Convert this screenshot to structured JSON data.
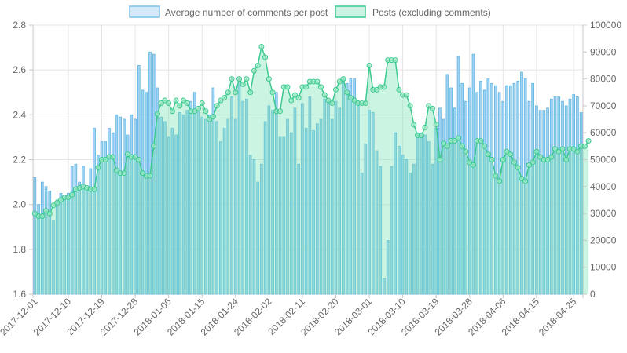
{
  "chart_data": {
    "type": "bar",
    "legend": {
      "placement": "top",
      "items": [
        {
          "label": "Average number of comments per post",
          "fill": "#d6e9f9",
          "stroke": "#7cc1ea"
        },
        {
          "label": "Posts (excluding comments)",
          "fill": "#c9f2e3",
          "stroke": "#3cc98f"
        }
      ]
    },
    "x_start_date": "2017-12-01",
    "x_tick_labels": [
      "2017-12-01",
      "2017-12-10",
      "2017-12-19",
      "2017-12-28",
      "2018-01-06",
      "2018-01-15",
      "2018-01-24",
      "2018-02-02",
      "2018-02-11",
      "2018-02-20",
      "2018-03-01",
      "2018-03-10",
      "2018-03-19",
      "2018-03-28",
      "2018-04-06",
      "2018-04-15",
      "2018-04-25"
    ],
    "y_left": {
      "min": 1.6,
      "max": 2.8,
      "ticks": [
        "1.6",
        "1.8",
        "2.0",
        "2.2",
        "2.4",
        "2.6",
        "2.8"
      ]
    },
    "y_right": {
      "min": 0,
      "max": 100000,
      "ticks": [
        "0",
        "10000",
        "20000",
        "30000",
        "40000",
        "50000",
        "60000",
        "70000",
        "80000",
        "90000",
        "100000"
      ]
    },
    "grid": true,
    "series": [
      {
        "name": "Average number of comments per post",
        "type": "bar",
        "axis": "left",
        "color": "#5fb4e3",
        "values": [
          2.12,
          2.0,
          2.1,
          2.08,
          2.06,
          1.93,
          2.02,
          2.05,
          2.04,
          2.05,
          2.17,
          2.18,
          2.1,
          2.17,
          2.07,
          2.16,
          2.34,
          2.22,
          2.28,
          2.28,
          2.34,
          2.32,
          2.4,
          2.39,
          2.38,
          2.31,
          2.4,
          2.38,
          2.62,
          2.51,
          2.5,
          2.68,
          2.67,
          2.52,
          2.39,
          2.37,
          2.3,
          2.34,
          2.31,
          2.41,
          2.4,
          2.42,
          2.46,
          2.5,
          2.42,
          2.39,
          2.38,
          2.4,
          2.52,
          2.37,
          2.28,
          2.34,
          2.38,
          2.48,
          2.38,
          2.56,
          2.46,
          2.47,
          2.22,
          2.2,
          2.1,
          2.18,
          2.37,
          2.44,
          2.42,
          2.5,
          2.3,
          2.3,
          2.38,
          2.32,
          2.43,
          2.18,
          2.45,
          2.34,
          2.48,
          2.33,
          2.36,
          2.38,
          2.47,
          2.46,
          2.38,
          2.46,
          2.43,
          2.56,
          2.54,
          2.56,
          2.56,
          2.46,
          2.14,
          2.27,
          2.42,
          2.41,
          2.24,
          2.17,
          1.67,
          1.84,
          2.17,
          2.32,
          2.26,
          2.22,
          2.2,
          2.14,
          2.18,
          2.32,
          2.32,
          2.31,
          2.28,
          2.18,
          2.34,
          2.43,
          2.38,
          2.58,
          2.52,
          2.43,
          2.66,
          2.54,
          2.46,
          2.52,
          2.67,
          2.5,
          2.55,
          2.51,
          2.56,
          2.54,
          2.53,
          2.5,
          2.46,
          2.53,
          2.53,
          2.54,
          2.55,
          2.59,
          2.56,
          2.46,
          2.54,
          2.44,
          2.42,
          2.42,
          2.43,
          2.47,
          2.48,
          2.48,
          2.46,
          2.44,
          2.47,
          2.49,
          2.48,
          2.41
        ]
      },
      {
        "name": "Posts (excluding comments)",
        "type": "area",
        "axis": "right",
        "color": "#3cc98f",
        "values": [
          30000,
          29000,
          29000,
          31000,
          30000,
          33000,
          34000,
          35000,
          36000,
          36000,
          37000,
          39000,
          39500,
          40000,
          39500,
          39000,
          39000,
          47000,
          50000,
          50000,
          51000,
          51000,
          46000,
          45000,
          45000,
          52000,
          51000,
          51000,
          50000,
          45000,
          44000,
          44000,
          55000,
          67000,
          71000,
          72000,
          71000,
          68000,
          72000,
          70000,
          72000,
          71000,
          68000,
          68000,
          69000,
          71000,
          68000,
          65000,
          66000,
          70000,
          72000,
          73000,
          75000,
          80000,
          75000,
          80000,
          78000,
          80000,
          75000,
          83000,
          85000,
          92000,
          88000,
          80000,
          75000,
          68000,
          68000,
          77000,
          77000,
          72000,
          74000,
          73000,
          77000,
          77000,
          79000,
          79000,
          79000,
          77000,
          74000,
          72000,
          71000,
          76000,
          79000,
          80000,
          75000,
          73000,
          72000,
          71000,
          71000,
          71000,
          85000,
          76000,
          76000,
          77000,
          77000,
          87000,
          87000,
          87000,
          76000,
          74000,
          74000,
          70000,
          63000,
          59000,
          59000,
          62000,
          70000,
          69000,
          63000,
          50000,
          56000,
          55000,
          57000,
          57000,
          58000,
          55000,
          53000,
          49000,
          48000,
          57000,
          57000,
          55000,
          52000,
          50000,
          44000,
          42000,
          50000,
          53000,
          52000,
          49000,
          47000,
          43000,
          42000,
          48000,
          49000,
          53000,
          51000,
          50000,
          50000,
          51000,
          54000,
          53000,
          54000,
          50000,
          54000,
          54000,
          53000,
          55000,
          55000,
          57000
        ]
      }
    ]
  }
}
